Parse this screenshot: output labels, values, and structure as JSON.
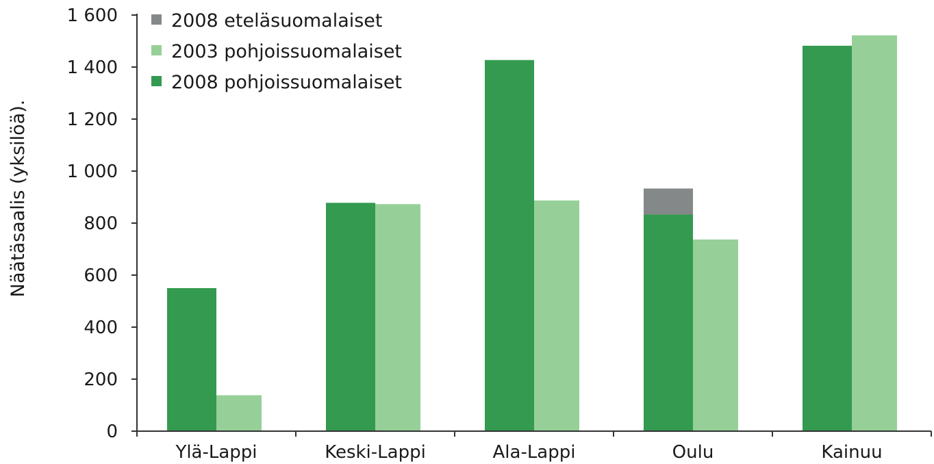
{
  "chart_data": {
    "type": "bar",
    "title": "",
    "xlabel": "",
    "ylabel": "Näätäsaalis (yksilöä).",
    "ylim": [
      0,
      1600
    ],
    "yticks": [
      0,
      200,
      400,
      600,
      800,
      1000,
      1200,
      1400,
      1600
    ],
    "ytick_labels": [
      "0",
      "200",
      "400",
      "600",
      "800",
      "1 000",
      "1 200",
      "1 400",
      "1 600"
    ],
    "categories": [
      "Ylä-Lappi",
      "Keski-Lappi",
      "Ala-Lappi",
      "Oulu",
      "Kainuu"
    ],
    "series": [
      {
        "name": "2008 pohjoissuomalaiset",
        "color": "#339a50",
        "group": "2008",
        "values": [
          550,
          878,
          1427,
          833,
          1482
        ]
      },
      {
        "name": "2008 eteläsuomalaiset",
        "color": "#858889",
        "group": "2008",
        "stacked_on": "2008 pohjoissuomalaiset",
        "values": [
          0,
          0,
          0,
          100,
          0
        ]
      },
      {
        "name": "2003 pohjoissuomalaiset",
        "color": "#96d098",
        "group": "2003",
        "values": [
          138,
          873,
          887,
          737,
          1522
        ]
      }
    ],
    "legend": {
      "placement": "top-left",
      "order": [
        "2008 eteläsuomalaiset",
        "2003 pohjoissuomalaiset",
        "2008 pohjoissuomalaiset"
      ]
    },
    "grid": false
  }
}
